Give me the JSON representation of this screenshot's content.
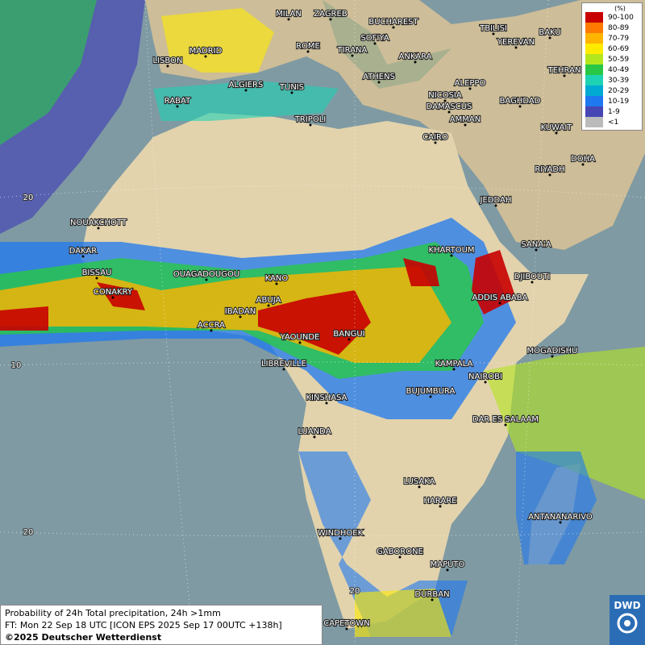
{
  "cities": [
    "MILAN",
    "ZAGREB",
    "BUCHAREST",
    "TBILISI",
    "BAKU",
    "SOFIYA",
    "MADRID",
    "ROME",
    "TIRANA",
    "ANKARA",
    "YEREVAN",
    "LISBON",
    "TEHRAN",
    "ALGIERS",
    "TUNIS",
    "ATHENS",
    "ALEPPO",
    "NICOSIA",
    "BAGHDAD",
    "RABAT",
    "DAMASCUS",
    "AMMAN",
    "TRIPOLI",
    "KUWAIT",
    "CAIRO",
    "DOHA",
    "RIYADH",
    "JEDDAH",
    "NOUAKCHOTT",
    "SANA'A",
    "DAKAR",
    "KHARTOUM",
    "DJIBOUTI",
    "BISSAU",
    "OUAGADOUGOU",
    "KANO",
    "CONAKRY",
    "ABUJA",
    "ADDIS ABABA",
    "IBADAN",
    "ACCRA",
    "BANGUI",
    "YAOUNDE",
    "MOGADISHU",
    "LIBREVILLE",
    "KAMPALA",
    "NAIROBI",
    "BUJUMBURA",
    "KINSHASA",
    "DAR ES SALAAM",
    "LUANDA",
    "LUSAKA",
    "HARARE",
    "ANTANANARIVO",
    "WINDHOEK",
    "GABORONE",
    "MAPUTO",
    "DURBAN",
    "CAPETOWN"
  ],
  "grid_labels": [
    "20",
    "10",
    "20",
    "20"
  ],
  "legend": {
    "title": "(%)",
    "entries": [
      {
        "label": "90-100",
        "color": "#c80000"
      },
      {
        "label": "80-89",
        "color": "#ff7a00"
      },
      {
        "label": "70-79",
        "color": "#ffb400"
      },
      {
        "label": "60-69",
        "color": "#ffeb00"
      },
      {
        "label": "50-59",
        "color": "#b4e61e"
      },
      {
        "label": "40-49",
        "color": "#28c846"
      },
      {
        "label": "30-39",
        "color": "#1ed2b4"
      },
      {
        "label": "20-29",
        "color": "#00aad2"
      },
      {
        "label": "10-19",
        "color": "#1e78f0"
      },
      {
        "label": "1-9",
        "color": "#4646b4"
      },
      {
        "label": "<1",
        "color": "#bbbbbb"
      }
    ]
  },
  "footer": {
    "line1": "Probability of 24h Total precipitation, 24h >1mm",
    "line2": "FT: Mon 22 Sep 18 UTC [ICON EPS 2025 Sep 17 00UTC +138h]",
    "line3": "©2025 Deutscher Wetterdienst"
  },
  "logo": "DWD"
}
